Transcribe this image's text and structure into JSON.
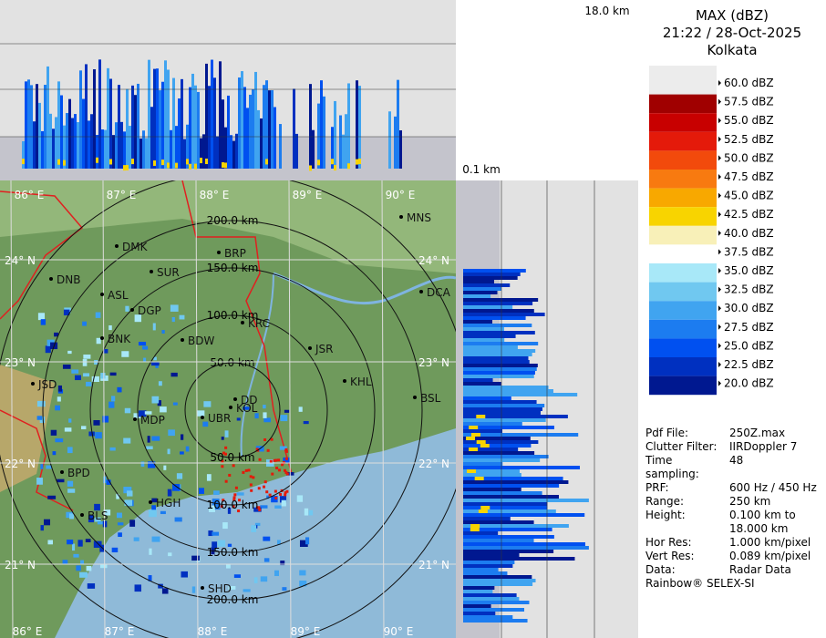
{
  "header": {
    "title": "MAX (dBZ)",
    "datetime": "21:22 / 28-Oct-2025",
    "station": "Kolkata"
  },
  "profile": {
    "top_height": "18.0 km",
    "bottom_height": "0.1 km"
  },
  "legend": [
    {
      "label": "60.0 dBZ",
      "color": "#ececec"
    },
    {
      "label": "57.5 dBZ",
      "color": "#a00000"
    },
    {
      "label": "55.0 dBZ",
      "color": "#c80000"
    },
    {
      "label": "52.5 dBZ",
      "color": "#e41a0a"
    },
    {
      "label": "50.0 dBZ",
      "color": "#f24a0c"
    },
    {
      "label": "47.5 dBZ",
      "color": "#f87a10"
    },
    {
      "label": "45.0 dBZ",
      "color": "#f8a800"
    },
    {
      "label": "42.5 dBZ",
      "color": "#f8d400"
    },
    {
      "label": "40.0 dBZ",
      "color": "#f8f0b8"
    },
    {
      "label": "37.5 dBZ",
      "color": "#ffffff"
    },
    {
      "label": "35.0 dBZ",
      "color": "#a8e8f8"
    },
    {
      "label": "32.5 dBZ",
      "color": "#70c8f0"
    },
    {
      "label": "30.0 dBZ",
      "color": "#40a4f0"
    },
    {
      "label": "27.5 dBZ",
      "color": "#1c7cf0"
    },
    {
      "label": "25.0 dBZ",
      "color": "#0050f0"
    },
    {
      "label": "22.5 dBZ",
      "color": "#0030c0"
    },
    {
      "label": "20.0 dBZ",
      "color": "#001890"
    }
  ],
  "info": [
    {
      "key": "Pdf File:",
      "value": "250Z.max"
    },
    {
      "key": "Clutter Filter:",
      "value": "IIRDoppler 7"
    },
    {
      "key": "Time sampling:",
      "value": "48"
    },
    {
      "key": "PRF:",
      "value": "600 Hz / 450 Hz"
    },
    {
      "key": "Range:",
      "value": "250 km"
    },
    {
      "key": "Height:",
      "value": "0.100 km to 18.000 km"
    },
    {
      "key": "Hor Res:",
      "value": "1.000 km/pixel"
    },
    {
      "key": "Vert Res:",
      "value": "0.089 km/pixel"
    },
    {
      "key": "Data:",
      "value": "Radar Data"
    }
  ],
  "credit": "Rainbow® SELEX-SI",
  "map": {
    "lon_labels": [
      "86° E",
      "87° E",
      "88° E",
      "89° E",
      "90° E"
    ],
    "lat_labels": [
      "24° N",
      "23° N",
      "22° N",
      "21° N"
    ],
    "ring_labels": [
      "50.0 km",
      "100.0 km",
      "150.0 km",
      "200.0 km"
    ],
    "cities": [
      "MNS",
      "DMK",
      "BRP",
      "SUR",
      "DNB",
      "ASL",
      "DGP",
      "DCA",
      "KRC",
      "BNK",
      "BDW",
      "JSR",
      "KHL",
      "JSD",
      "DD",
      "KOL",
      "BSL",
      "MDP",
      "UBR",
      "BPD",
      "HGH",
      "BLS",
      "SHD"
    ]
  }
}
